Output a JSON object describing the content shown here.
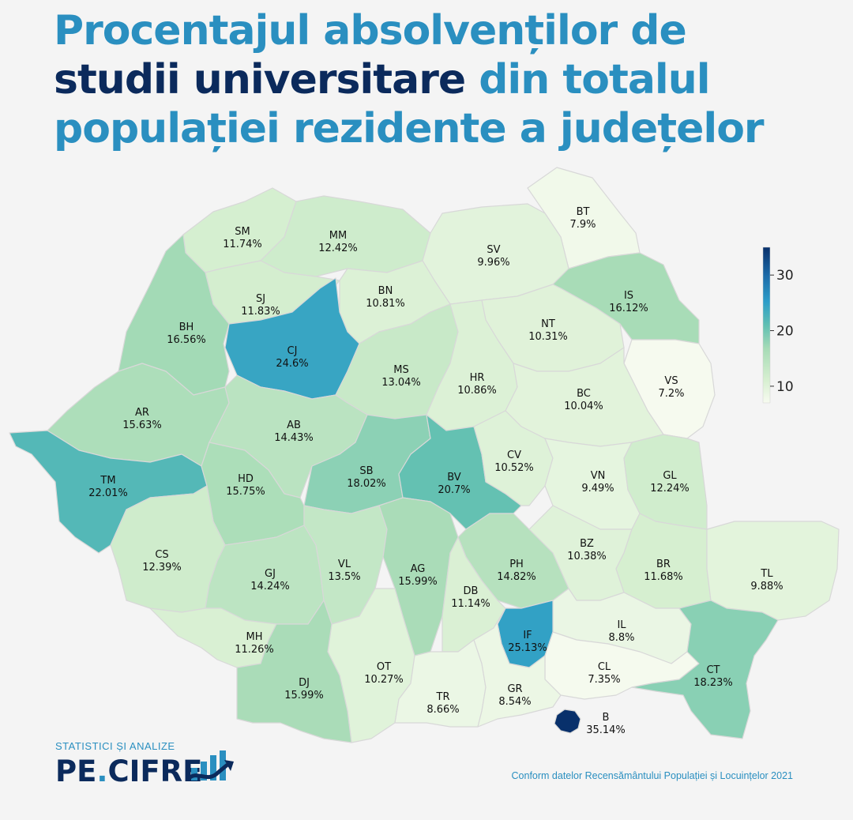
{
  "title": {
    "line1": "Procentajul absolvenților de",
    "line2_dark": "studii universitare",
    "line2_light": " din totalul",
    "line3": "populației rezidente a județelor"
  },
  "colorbar": {
    "min": 7,
    "max": 35,
    "ticks": [
      "10",
      "20",
      "30"
    ],
    "tick_values": [
      10,
      20,
      30
    ],
    "colors": [
      "#f7fbf0",
      "#d6efd0",
      "#a6dbb6",
      "#5fbfb2",
      "#2c9dc8",
      "#1b6aa8",
      "#08306b"
    ]
  },
  "counties": [
    {
      "code": "SM",
      "value": "11.74%",
      "v": 11.74
    },
    {
      "code": "MM",
      "value": "12.42%",
      "v": 12.42
    },
    {
      "code": "BT",
      "value": "7.9%",
      "v": 7.9
    },
    {
      "code": "SV",
      "value": "9.96%",
      "v": 9.96
    },
    {
      "code": "SJ",
      "value": "11.83%",
      "v": 11.83
    },
    {
      "code": "BN",
      "value": "10.81%",
      "v": 10.81
    },
    {
      "code": "IS",
      "value": "16.12%",
      "v": 16.12
    },
    {
      "code": "BH",
      "value": "16.56%",
      "v": 16.56
    },
    {
      "code": "CJ",
      "value": "24.6%",
      "v": 24.6
    },
    {
      "code": "NT",
      "value": "10.31%",
      "v": 10.31
    },
    {
      "code": "MS",
      "value": "13.04%",
      "v": 13.04
    },
    {
      "code": "HR",
      "value": "10.86%",
      "v": 10.86
    },
    {
      "code": "VS",
      "value": "7.2%",
      "v": 7.2
    },
    {
      "code": "BC",
      "value": "10.04%",
      "v": 10.04
    },
    {
      "code": "AR",
      "value": "15.63%",
      "v": 15.63
    },
    {
      "code": "AB",
      "value": "14.43%",
      "v": 14.43
    },
    {
      "code": "SB",
      "value": "18.02%",
      "v": 18.02
    },
    {
      "code": "BV",
      "value": "20.7%",
      "v": 20.7
    },
    {
      "code": "CV",
      "value": "10.52%",
      "v": 10.52
    },
    {
      "code": "TM",
      "value": "22.01%",
      "v": 22.01
    },
    {
      "code": "HD",
      "value": "15.75%",
      "v": 15.75
    },
    {
      "code": "VN",
      "value": "9.49%",
      "v": 9.49
    },
    {
      "code": "GL",
      "value": "12.24%",
      "v": 12.24
    },
    {
      "code": "CS",
      "value": "12.39%",
      "v": 12.39
    },
    {
      "code": "GJ",
      "value": "14.24%",
      "v": 14.24
    },
    {
      "code": "VL",
      "value": "13.5%",
      "v": 13.5
    },
    {
      "code": "AG",
      "value": "15.99%",
      "v": 15.99
    },
    {
      "code": "PH",
      "value": "14.82%",
      "v": 14.82
    },
    {
      "code": "BZ",
      "value": "10.38%",
      "v": 10.38
    },
    {
      "code": "BR",
      "value": "11.68%",
      "v": 11.68
    },
    {
      "code": "TL",
      "value": "9.88%",
      "v": 9.88
    },
    {
      "code": "DB",
      "value": "11.14%",
      "v": 11.14
    },
    {
      "code": "IL",
      "value": "8.8%",
      "v": 8.8
    },
    {
      "code": "IF",
      "value": "25.13%",
      "v": 25.13
    },
    {
      "code": "MH",
      "value": "11.26%",
      "v": 11.26
    },
    {
      "code": "OT",
      "value": "10.27%",
      "v": 10.27
    },
    {
      "code": "CL",
      "value": "7.35%",
      "v": 7.35
    },
    {
      "code": "CT",
      "value": "18.23%",
      "v": 18.23
    },
    {
      "code": "DJ",
      "value": "15.99%",
      "v": 15.99
    },
    {
      "code": "TR",
      "value": "8.66%",
      "v": 8.66
    },
    {
      "code": "GR",
      "value": "8.54%",
      "v": 8.54
    },
    {
      "code": "B",
      "value": "35.14%",
      "v": 35.14
    }
  ],
  "brand": {
    "tagline": "STATISTICI ȘI ANALIZE",
    "name_left": "PE",
    "name_dot": ".",
    "name_right": "CIFRE"
  },
  "source": "Conform datelor Recensământului Populației și Locuințelor 2021"
}
